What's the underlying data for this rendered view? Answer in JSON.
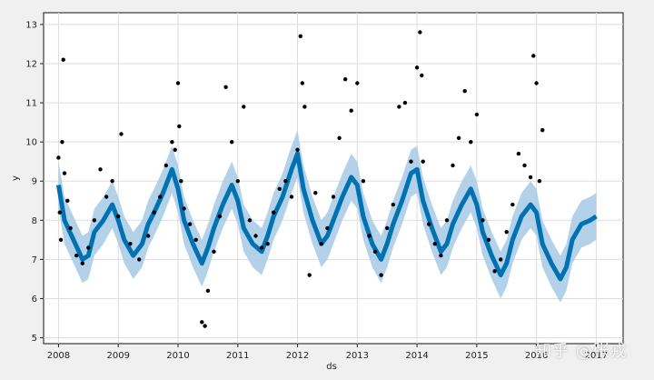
{
  "chart_data": {
    "type": "line",
    "xlabel": "ds",
    "ylabel": "y",
    "xlim": [
      2007.75,
      2017.45
    ],
    "ylim": [
      4.85,
      13.3
    ],
    "x_ticks": [
      "2008",
      "2009",
      "2010",
      "2011",
      "2012",
      "2013",
      "2014",
      "2015",
      "2016",
      "2017"
    ],
    "y_ticks": [
      "5",
      "6",
      "7",
      "8",
      "9",
      "10",
      "11",
      "12",
      "13"
    ],
    "grid": true,
    "colors": {
      "forecast": "#0072B2",
      "uncertainty": "#a6cae6",
      "observed": "#000000",
      "grid": "#dddddd",
      "plot_background": "#ffffff"
    },
    "series": [
      {
        "kind": "forecast_yhat",
        "x": [
          2008.0,
          2008.1,
          2008.25,
          2008.4,
          2008.5,
          2008.6,
          2008.75,
          2008.9,
          2009.0,
          2009.1,
          2009.25,
          2009.4,
          2009.5,
          2009.6,
          2009.75,
          2009.9,
          2010.0,
          2010.1,
          2010.25,
          2010.4,
          2010.5,
          2010.6,
          2010.75,
          2010.9,
          2011.0,
          2011.1,
          2011.25,
          2011.4,
          2011.5,
          2011.6,
          2011.75,
          2011.9,
          2012.0,
          2012.1,
          2012.25,
          2012.4,
          2012.5,
          2012.6,
          2012.75,
          2012.9,
          2013.0,
          2013.1,
          2013.25,
          2013.4,
          2013.5,
          2013.6,
          2013.75,
          2013.9,
          2014.0,
          2014.1,
          2014.25,
          2014.4,
          2014.5,
          2014.6,
          2014.75,
          2014.9,
          2015.0,
          2015.1,
          2015.25,
          2015.4,
          2015.5,
          2015.6,
          2015.75,
          2015.9,
          2016.0,
          2016.1,
          2016.25,
          2016.4,
          2016.5,
          2016.6,
          2016.75,
          2016.9,
          2017.0
        ],
        "y": [
          8.9,
          8.0,
          7.5,
          7.0,
          7.1,
          7.7,
          8.0,
          8.4,
          8.0,
          7.5,
          7.1,
          7.4,
          7.9,
          8.2,
          8.7,
          9.3,
          8.8,
          8.0,
          7.4,
          6.9,
          7.3,
          7.8,
          8.4,
          8.9,
          8.5,
          7.8,
          7.4,
          7.2,
          7.6,
          8.1,
          8.6,
          9.3,
          9.7,
          8.8,
          8.0,
          7.4,
          7.6,
          8.0,
          8.6,
          9.1,
          8.9,
          8.1,
          7.4,
          7.0,
          7.4,
          7.9,
          8.5,
          9.2,
          9.3,
          8.5,
          7.8,
          7.2,
          7.4,
          7.9,
          8.4,
          8.8,
          8.4,
          7.7,
          7.1,
          6.6,
          6.9,
          7.5,
          8.1,
          8.4,
          8.2,
          7.4,
          6.9,
          6.5,
          6.8,
          7.5,
          7.9,
          8.0,
          8.1
        ],
        "lower_offset": 0.6,
        "upper_offset": 0.6
      },
      {
        "kind": "observed",
        "x": [
          2008.0,
          2008.02,
          2008.04,
          2008.06,
          2008.08,
          2008.1,
          2008.15,
          2008.2,
          2008.3,
          2008.4,
          2008.5,
          2008.6,
          2008.7,
          2008.8,
          2008.9,
          2009.0,
          2009.05,
          2009.2,
          2009.35,
          2009.5,
          2009.6,
          2009.7,
          2009.8,
          2009.9,
          2009.95,
          2010.0,
          2010.02,
          2010.05,
          2010.1,
          2010.2,
          2010.3,
          2010.4,
          2010.45,
          2010.5,
          2010.6,
          2010.7,
          2010.8,
          2010.9,
          2011.0,
          2011.1,
          2011.2,
          2011.3,
          2011.4,
          2011.5,
          2011.6,
          2011.7,
          2011.8,
          2011.9,
          2012.0,
          2012.05,
          2012.08,
          2012.12,
          2012.2,
          2012.3,
          2012.4,
          2012.5,
          2012.6,
          2012.7,
          2012.8,
          2012.9,
          2013.0,
          2013.1,
          2013.2,
          2013.3,
          2013.4,
          2013.5,
          2013.6,
          2013.7,
          2013.8,
          2013.9,
          2014.0,
          2014.05,
          2014.08,
          2014.1,
          2014.2,
          2014.3,
          2014.4,
          2014.5,
          2014.6,
          2014.7,
          2014.8,
          2014.9,
          2015.0,
          2015.1,
          2015.2,
          2015.3,
          2015.4,
          2015.5,
          2015.6,
          2015.7,
          2015.8,
          2015.9,
          2015.95,
          2016.0,
          2016.05,
          2016.1
        ],
        "y": [
          9.6,
          8.2,
          7.5,
          10.0,
          12.1,
          9.2,
          8.5,
          7.8,
          7.1,
          6.9,
          7.3,
          8.0,
          9.3,
          8.6,
          9.0,
          8.1,
          10.2,
          7.4,
          7.0,
          7.6,
          8.2,
          8.6,
          9.4,
          10.0,
          9.8,
          11.5,
          10.4,
          9.0,
          8.3,
          7.9,
          7.5,
          5.4,
          5.3,
          6.2,
          7.2,
          8.1,
          11.4,
          10.0,
          9.0,
          10.9,
          8.0,
          7.6,
          7.3,
          7.4,
          8.2,
          8.8,
          9.0,
          8.6,
          9.8,
          12.7,
          11.5,
          10.9,
          6.6,
          8.7,
          7.4,
          7.8,
          8.6,
          10.1,
          11.6,
          10.8,
          11.5,
          9.0,
          7.6,
          7.2,
          6.6,
          7.8,
          8.4,
          10.9,
          11.0,
          9.5,
          11.9,
          12.8,
          11.7,
          9.5,
          7.9,
          7.4,
          7.1,
          8.0,
          9.4,
          10.1,
          11.3,
          10.0,
          10.7,
          8.0,
          7.5,
          6.7,
          7.0,
          7.7,
          8.4,
          9.7,
          9.4,
          9.1,
          12.2,
          11.5,
          9.0,
          10.3
        ]
      }
    ]
  },
  "watermark": "知乎 @张戎"
}
